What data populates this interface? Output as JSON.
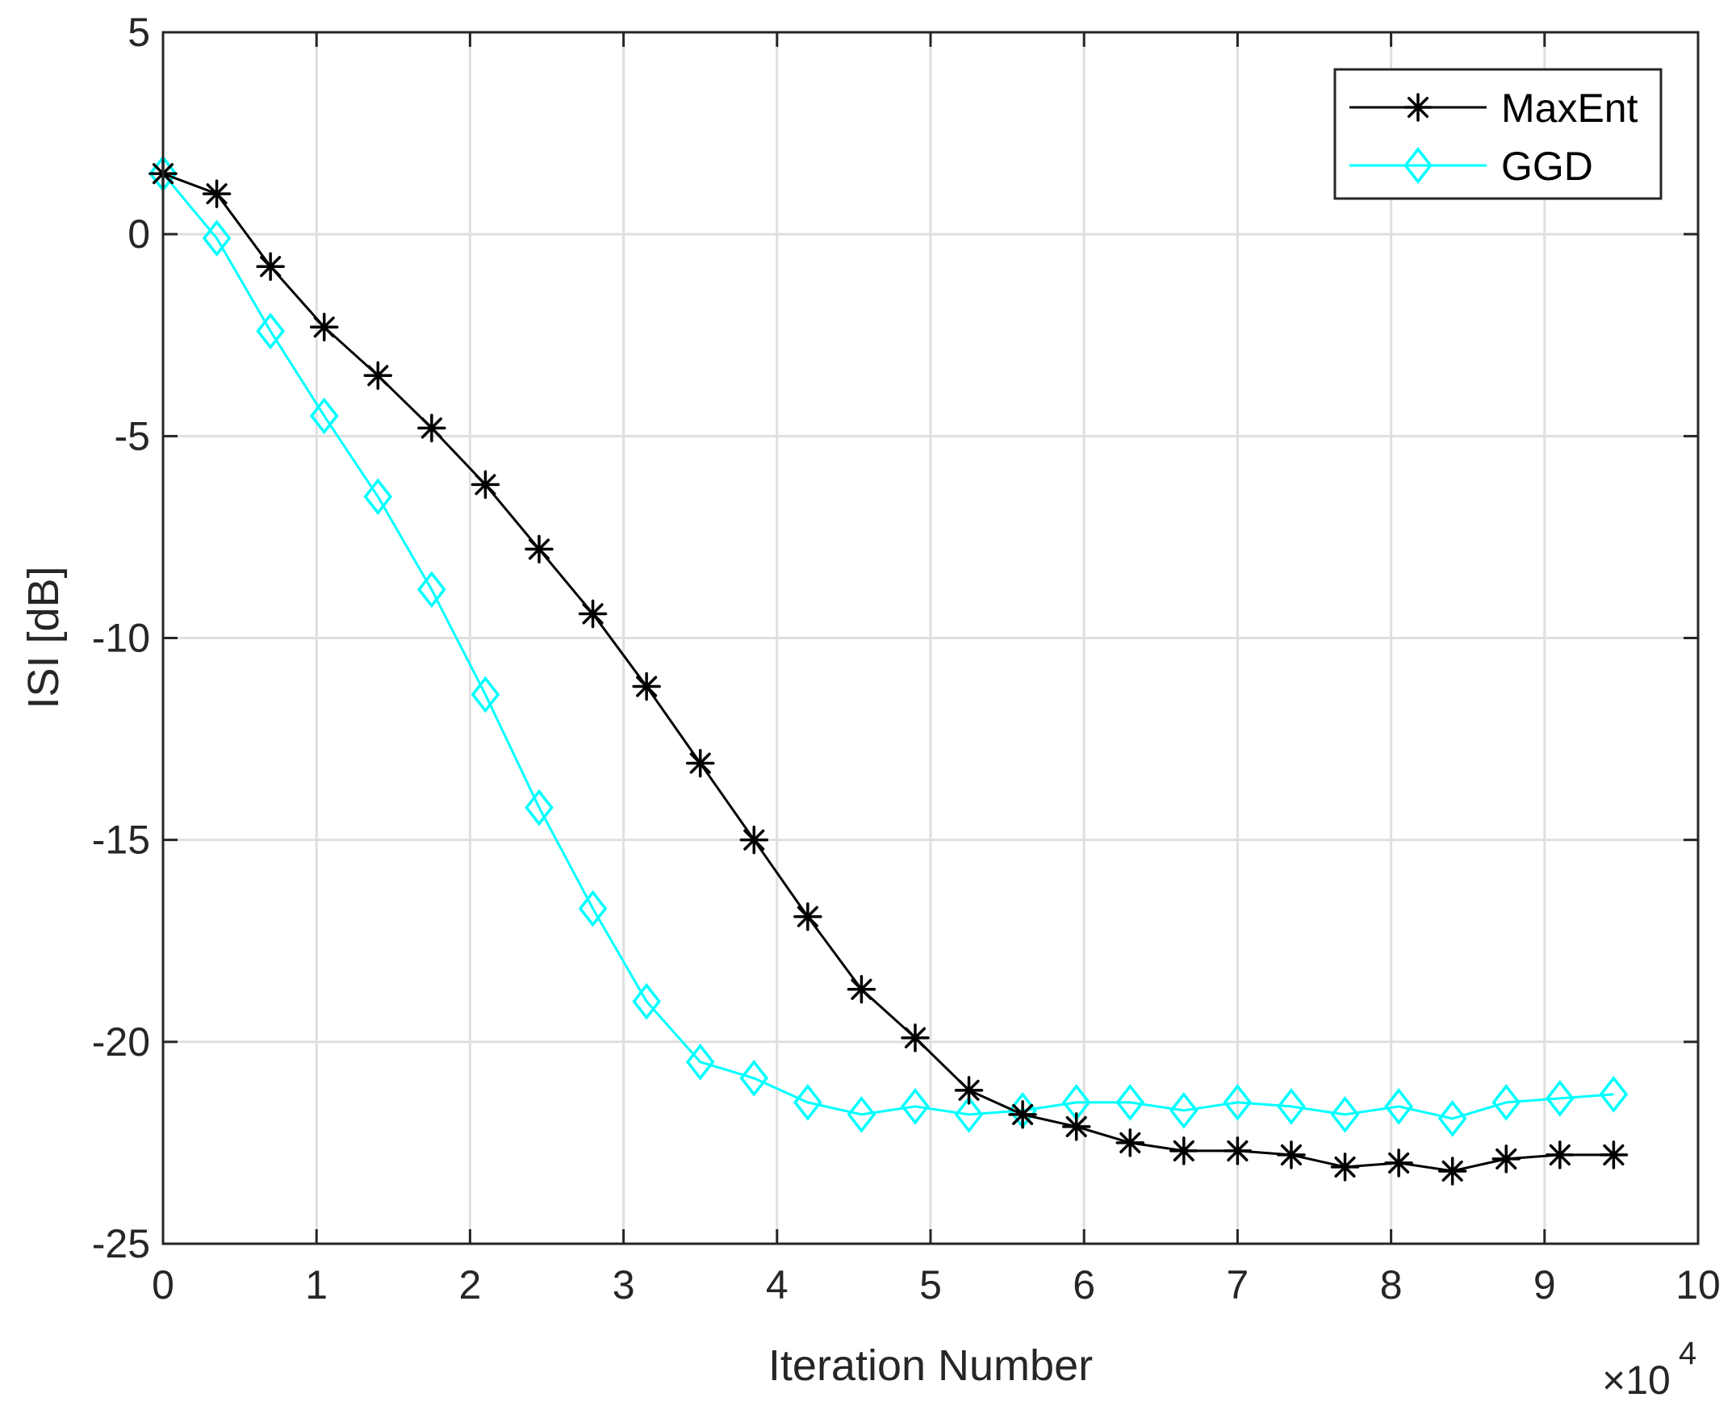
{
  "chart_data": {
    "type": "line",
    "title": "",
    "xlabel": "Iteration Number",
    "ylabel": "ISI [dB]",
    "x_exponent_base": "×10",
    "x_exponent_power": "4",
    "xlim": [
      0,
      10
    ],
    "ylim": [
      -25,
      5
    ],
    "xticks": [
      0,
      1,
      2,
      3,
      4,
      5,
      6,
      7,
      8,
      9,
      10
    ],
    "xtick_labels": [
      "0",
      "1",
      "2",
      "3",
      "4",
      "5",
      "6",
      "7",
      "8",
      "9",
      "10"
    ],
    "yticks": [
      5,
      0,
      -5,
      -10,
      -15,
      -20,
      -25
    ],
    "ytick_labels": [
      "5",
      "0",
      "-5",
      "-10",
      "-15",
      "-20",
      "-25"
    ],
    "grid": true,
    "legend_position": "top-right",
    "x": [
      0,
      0.35,
      0.7,
      1.05,
      1.4,
      1.75,
      2.1,
      2.45,
      2.8,
      3.15,
      3.5,
      3.85,
      4.2,
      4.55,
      4.9,
      5.25,
      5.6,
      5.95,
      6.3,
      6.65,
      7.0,
      7.35,
      7.7,
      8.05,
      8.4,
      8.75,
      9.1,
      9.45
    ],
    "series": [
      {
        "name": "MaxEnt",
        "color": "#000000",
        "marker": "asterisk",
        "values": [
          1.5,
          1.0,
          -0.8,
          -2.3,
          -3.5,
          -4.8,
          -6.2,
          -7.8,
          -9.4,
          -11.2,
          -13.1,
          -15.0,
          -16.9,
          -18.7,
          -19.9,
          -21.2,
          -21.8,
          -22.1,
          -22.5,
          -22.7,
          -22.7,
          -22.8,
          -23.1,
          -23.0,
          -23.2,
          -22.9,
          -22.8,
          -22.8
        ]
      },
      {
        "name": "GGD",
        "color": "#00FFFF",
        "marker": "diamond",
        "values": [
          1.5,
          -0.1,
          -2.4,
          -4.5,
          -6.5,
          -8.8,
          -11.4,
          -14.2,
          -16.7,
          -19.0,
          -20.5,
          -20.9,
          -21.5,
          -21.8,
          -21.6,
          -21.8,
          -21.7,
          -21.5,
          -21.5,
          -21.7,
          -21.5,
          -21.6,
          -21.8,
          -21.6,
          -21.9,
          -21.5,
          -21.4,
          -21.3
        ]
      }
    ]
  }
}
